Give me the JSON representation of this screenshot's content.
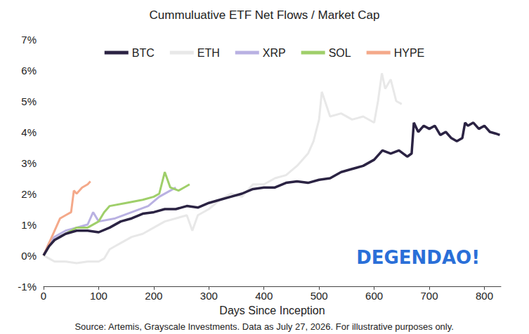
{
  "chart_data": {
    "type": "line",
    "title": "Cummuluative ETF Net Flows / Market Cap",
    "x_label": "Days Since Inception",
    "caption": "Source: Artemis, Grayscale Investments. Data as July 27, 2026. For illustrative purposes only.",
    "annotations": [
      "DEGENDAO!"
    ],
    "xlim": [
      0,
      830
    ],
    "xticks": [
      0,
      100,
      200,
      300,
      400,
      500,
      600,
      700,
      800
    ],
    "ylim": [
      -1,
      7
    ],
    "yticks": [
      {
        "value": -1,
        "label": "-1%"
      },
      {
        "value": 0,
        "label": "0%"
      },
      {
        "value": 1,
        "label": "1%"
      },
      {
        "value": 2,
        "label": "2%"
      },
      {
        "value": 3,
        "label": "3%"
      },
      {
        "value": 4,
        "label": "4%"
      },
      {
        "value": 5,
        "label": "5%"
      },
      {
        "value": 6,
        "label": "6%"
      },
      {
        "value": 7,
        "label": "7%"
      }
    ],
    "grid": false,
    "legend": "top",
    "series": [
      {
        "name": "BTC",
        "color": "#2b2343",
        "x": [
          0,
          10,
          20,
          30,
          40,
          60,
          80,
          100,
          120,
          140,
          160,
          180,
          200,
          220,
          240,
          260,
          280,
          300,
          320,
          340,
          360,
          380,
          400,
          420,
          440,
          460,
          480,
          500,
          520,
          540,
          560,
          580,
          600,
          615,
          630,
          645,
          660,
          668,
          672,
          680,
          690,
          700,
          710,
          720,
          730,
          740,
          750,
          760,
          765,
          770,
          780,
          790,
          800,
          810,
          820,
          828
        ],
        "values": [
          0,
          0.3,
          0.5,
          0.6,
          0.7,
          0.8,
          0.8,
          0.75,
          0.9,
          1.1,
          1.2,
          1.35,
          1.4,
          1.5,
          1.5,
          1.6,
          1.55,
          1.7,
          1.8,
          1.9,
          2.0,
          2.15,
          2.2,
          2.2,
          2.35,
          2.4,
          2.35,
          2.45,
          2.5,
          2.7,
          2.8,
          2.9,
          3.1,
          3.4,
          3.3,
          3.4,
          3.2,
          3.3,
          4.3,
          4.0,
          4.2,
          4.1,
          4.2,
          3.9,
          4.0,
          3.8,
          3.7,
          3.8,
          4.3,
          4.2,
          4.3,
          4.1,
          4.2,
          4.0,
          3.95,
          3.9
        ]
      },
      {
        "name": "ETH",
        "color": "#e8e8e8",
        "x": [
          0,
          10,
          20,
          40,
          60,
          80,
          100,
          110,
          120,
          130,
          140,
          160,
          180,
          200,
          220,
          240,
          260,
          270,
          280,
          300,
          320,
          340,
          360,
          380,
          400,
          420,
          440,
          460,
          480,
          490,
          500,
          505,
          520,
          540,
          560,
          580,
          600,
          607,
          614,
          620,
          630,
          640,
          650
        ],
        "values": [
          0,
          -0.1,
          -0.2,
          -0.2,
          -0.25,
          -0.2,
          -0.2,
          -0.1,
          0.2,
          0.3,
          0.4,
          0.6,
          0.7,
          0.9,
          1.1,
          1.2,
          1.3,
          0.8,
          1.3,
          1.5,
          1.8,
          2.0,
          1.9,
          2.3,
          2.3,
          2.5,
          2.6,
          2.9,
          3.3,
          3.7,
          4.4,
          5.3,
          4.5,
          4.6,
          4.4,
          4.5,
          4.3,
          5.0,
          5.9,
          5.4,
          5.7,
          5.0,
          4.9
        ]
      },
      {
        "name": "XRP",
        "color": "#b9b1e2",
        "x": [
          0,
          10,
          20,
          40,
          60,
          80,
          90,
          100,
          130,
          160,
          190,
          210,
          230,
          240
        ],
        "values": [
          0,
          0.4,
          0.6,
          0.8,
          0.9,
          1.0,
          1.4,
          1.1,
          1.2,
          1.4,
          1.6,
          1.9,
          2.1,
          2.2
        ]
      },
      {
        "name": "SOL",
        "color": "#9fcf6a",
        "x": [
          0,
          10,
          20,
          40,
          60,
          80,
          100,
          110,
          120,
          150,
          180,
          200,
          210,
          220,
          230,
          245,
          255,
          265
        ],
        "values": [
          0,
          0.3,
          0.5,
          0.7,
          0.9,
          0.9,
          1.1,
          1.4,
          1.6,
          1.7,
          1.8,
          1.9,
          2.0,
          2.7,
          2.2,
          2.1,
          2.2,
          2.3
        ]
      },
      {
        "name": "HYPE",
        "color": "#f4a98a",
        "x": [
          0,
          10,
          20,
          30,
          40,
          50,
          55,
          60,
          70,
          80,
          85
        ],
        "values": [
          0,
          0.4,
          0.8,
          1.2,
          1.3,
          1.4,
          2.1,
          2.0,
          2.2,
          2.3,
          2.4
        ]
      }
    ]
  }
}
